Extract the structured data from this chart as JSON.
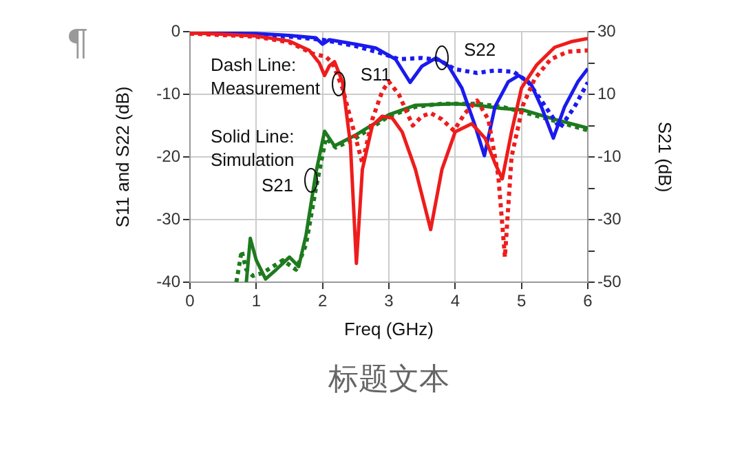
{
  "chart_data": {
    "type": "line",
    "xlabel": "Freq (GHz)",
    "ylabel": "S11 and S22 (dB)",
    "y2label": "S21 (dB)",
    "xlim": [
      0,
      6
    ],
    "xticks": [
      0,
      1,
      2,
      3,
      4,
      5,
      6
    ],
    "ylim": [
      -40,
      0
    ],
    "yticks": [
      0,
      -10,
      -20,
      -30,
      -40
    ],
    "y2lim": [
      -50,
      30
    ],
    "y2ticks": [
      30,
      {
        "value": 20,
        "label": null
      },
      10,
      {
        "value": 0,
        "label": null
      },
      -10,
      {
        "value": -20,
        "label": null
      },
      -30,
      {
        "value": -40,
        "label": null
      },
      -50
    ],
    "grid": true,
    "legend": false,
    "series": [
      {
        "color": "#ee1c1c",
        "line_style": "solid",
        "x": [
          0,
          0.5,
          1,
          1.5,
          1.8,
          1.95,
          2.03,
          2.1,
          2.18,
          2.3,
          2.42,
          2.51,
          2.6,
          2.75,
          2.9,
          3.05,
          3.2,
          3.4,
          3.63,
          3.8,
          4.0,
          4.25,
          4.45,
          4.6,
          4.71,
          4.85,
          5.0,
          5.23,
          5.5,
          5.75,
          6
        ],
        "values": [
          -0.2,
          -0.4,
          -0.7,
          -1.5,
          -3,
          -5,
          -7,
          -5.5,
          -4.8,
          -8,
          -18,
          -37,
          -22,
          -15,
          -13.5,
          -13.8,
          -16,
          -22,
          -31.6,
          -22,
          -16,
          -14.7,
          -17,
          -21,
          -23.5,
          -16,
          -9,
          -5.3,
          -2.5,
          -1.6,
          -1.1
        ]
      },
      {
        "color": "#ee1c1c",
        "line_style": "dotted",
        "x": [
          0,
          1,
          1.5,
          1.85,
          2.05,
          2.15,
          2.3,
          2.45,
          2.6,
          2.75,
          2.9,
          3.0,
          3.15,
          3.36,
          3.5,
          3.63,
          3.8,
          3.98,
          4.15,
          4.33,
          4.5,
          4.65,
          4.75,
          4.85,
          5.02,
          5.2,
          5.44,
          5.7,
          6
        ],
        "values": [
          -0.3,
          -0.8,
          -1.7,
          -3.5,
          -4,
          -5,
          -9,
          -15,
          -21,
          -14,
          -9.5,
          -8,
          -10,
          -15,
          -13.5,
          -13,
          -14,
          -15.8,
          -13,
          -11,
          -14,
          -23,
          -36,
          -20,
          -11.8,
          -7.5,
          -4.4,
          -3.2,
          -3
        ]
      },
      {
        "color": "#1a1aee",
        "line_style": "solid",
        "x": [
          0,
          1,
          1.5,
          1.9,
          2.0,
          2.1,
          2.5,
          2.8,
          3.1,
          3.32,
          3.5,
          3.71,
          3.9,
          4.1,
          4.3,
          4.44,
          4.6,
          4.8,
          4.96,
          5.15,
          5.3,
          5.48,
          5.65,
          5.85,
          6
        ],
        "values": [
          -0.2,
          -0.3,
          -0.6,
          -1,
          -2,
          -1.3,
          -2,
          -2.6,
          -4.4,
          -8.1,
          -5.5,
          -4.2,
          -5.5,
          -9,
          -15,
          -19.8,
          -12,
          -8,
          -7,
          -8.5,
          -12,
          -17,
          -12,
          -8,
          -5.9
        ]
      },
      {
        "color": "#1a1aee",
        "line_style": "dotted",
        "x": [
          0,
          1,
          1.5,
          2,
          2.5,
          2.9,
          3.15,
          3.5,
          3.75,
          4.0,
          4.33,
          4.6,
          4.88,
          5.1,
          5.3,
          5.58,
          5.8,
          6
        ],
        "values": [
          -0.3,
          -0.5,
          -0.8,
          -1.3,
          -2.3,
          -3.5,
          -4.4,
          -4.2,
          -4.5,
          -6,
          -6.6,
          -6.2,
          -6.4,
          -8,
          -11,
          -15.4,
          -12,
          -8.1
        ]
      },
      {
        "color": "#1e7a1e",
        "line_style": "solid",
        "axis": "y2",
        "x": [
          0.85,
          0.91,
          1.0,
          1.14,
          1.3,
          1.5,
          1.64,
          1.75,
          1.9,
          2.03,
          2.18,
          2.5,
          3.0,
          3.4,
          4.0,
          4.33,
          4.7,
          5.02,
          5.5,
          6
        ],
        "values": [
          -50,
          -36,
          -43,
          -49,
          -46,
          -42,
          -45,
          -35,
          -15,
          -1.8,
          -6.5,
          -3,
          3.5,
          6.5,
          7,
          6.5,
          5.5,
          5,
          2,
          -0.8
        ]
      },
      {
        "color": "#1e7a1e",
        "line_style": "dotted",
        "axis": "y2",
        "x": [
          0.7,
          0.78,
          0.85,
          0.95,
          1.1,
          1.4,
          1.6,
          1.75,
          1.9,
          2.05,
          2.2,
          2.5,
          3.0,
          3.4,
          3.8,
          4.33,
          4.7,
          5.0,
          5.5,
          6
        ],
        "values": [
          -50,
          -40,
          -46,
          -48,
          -47,
          -43,
          -46,
          -38,
          -20,
          -4,
          -7,
          -4,
          3,
          6,
          7,
          7,
          6,
          4.5,
          1.5,
          -1.5
        ]
      }
    ],
    "annotations": [
      "Dash Line:\nMeasurement",
      "Solid Line:\nSimulation",
      {
        "text": "S11",
        "x": 2.26,
        "y": -8.6
      },
      {
        "text": "S22",
        "x": 3.82,
        "y": -4.4
      },
      {
        "text": "S21",
        "x": 1.85,
        "y": -24
      },
      "¶",
      "标题文本"
    ]
  }
}
